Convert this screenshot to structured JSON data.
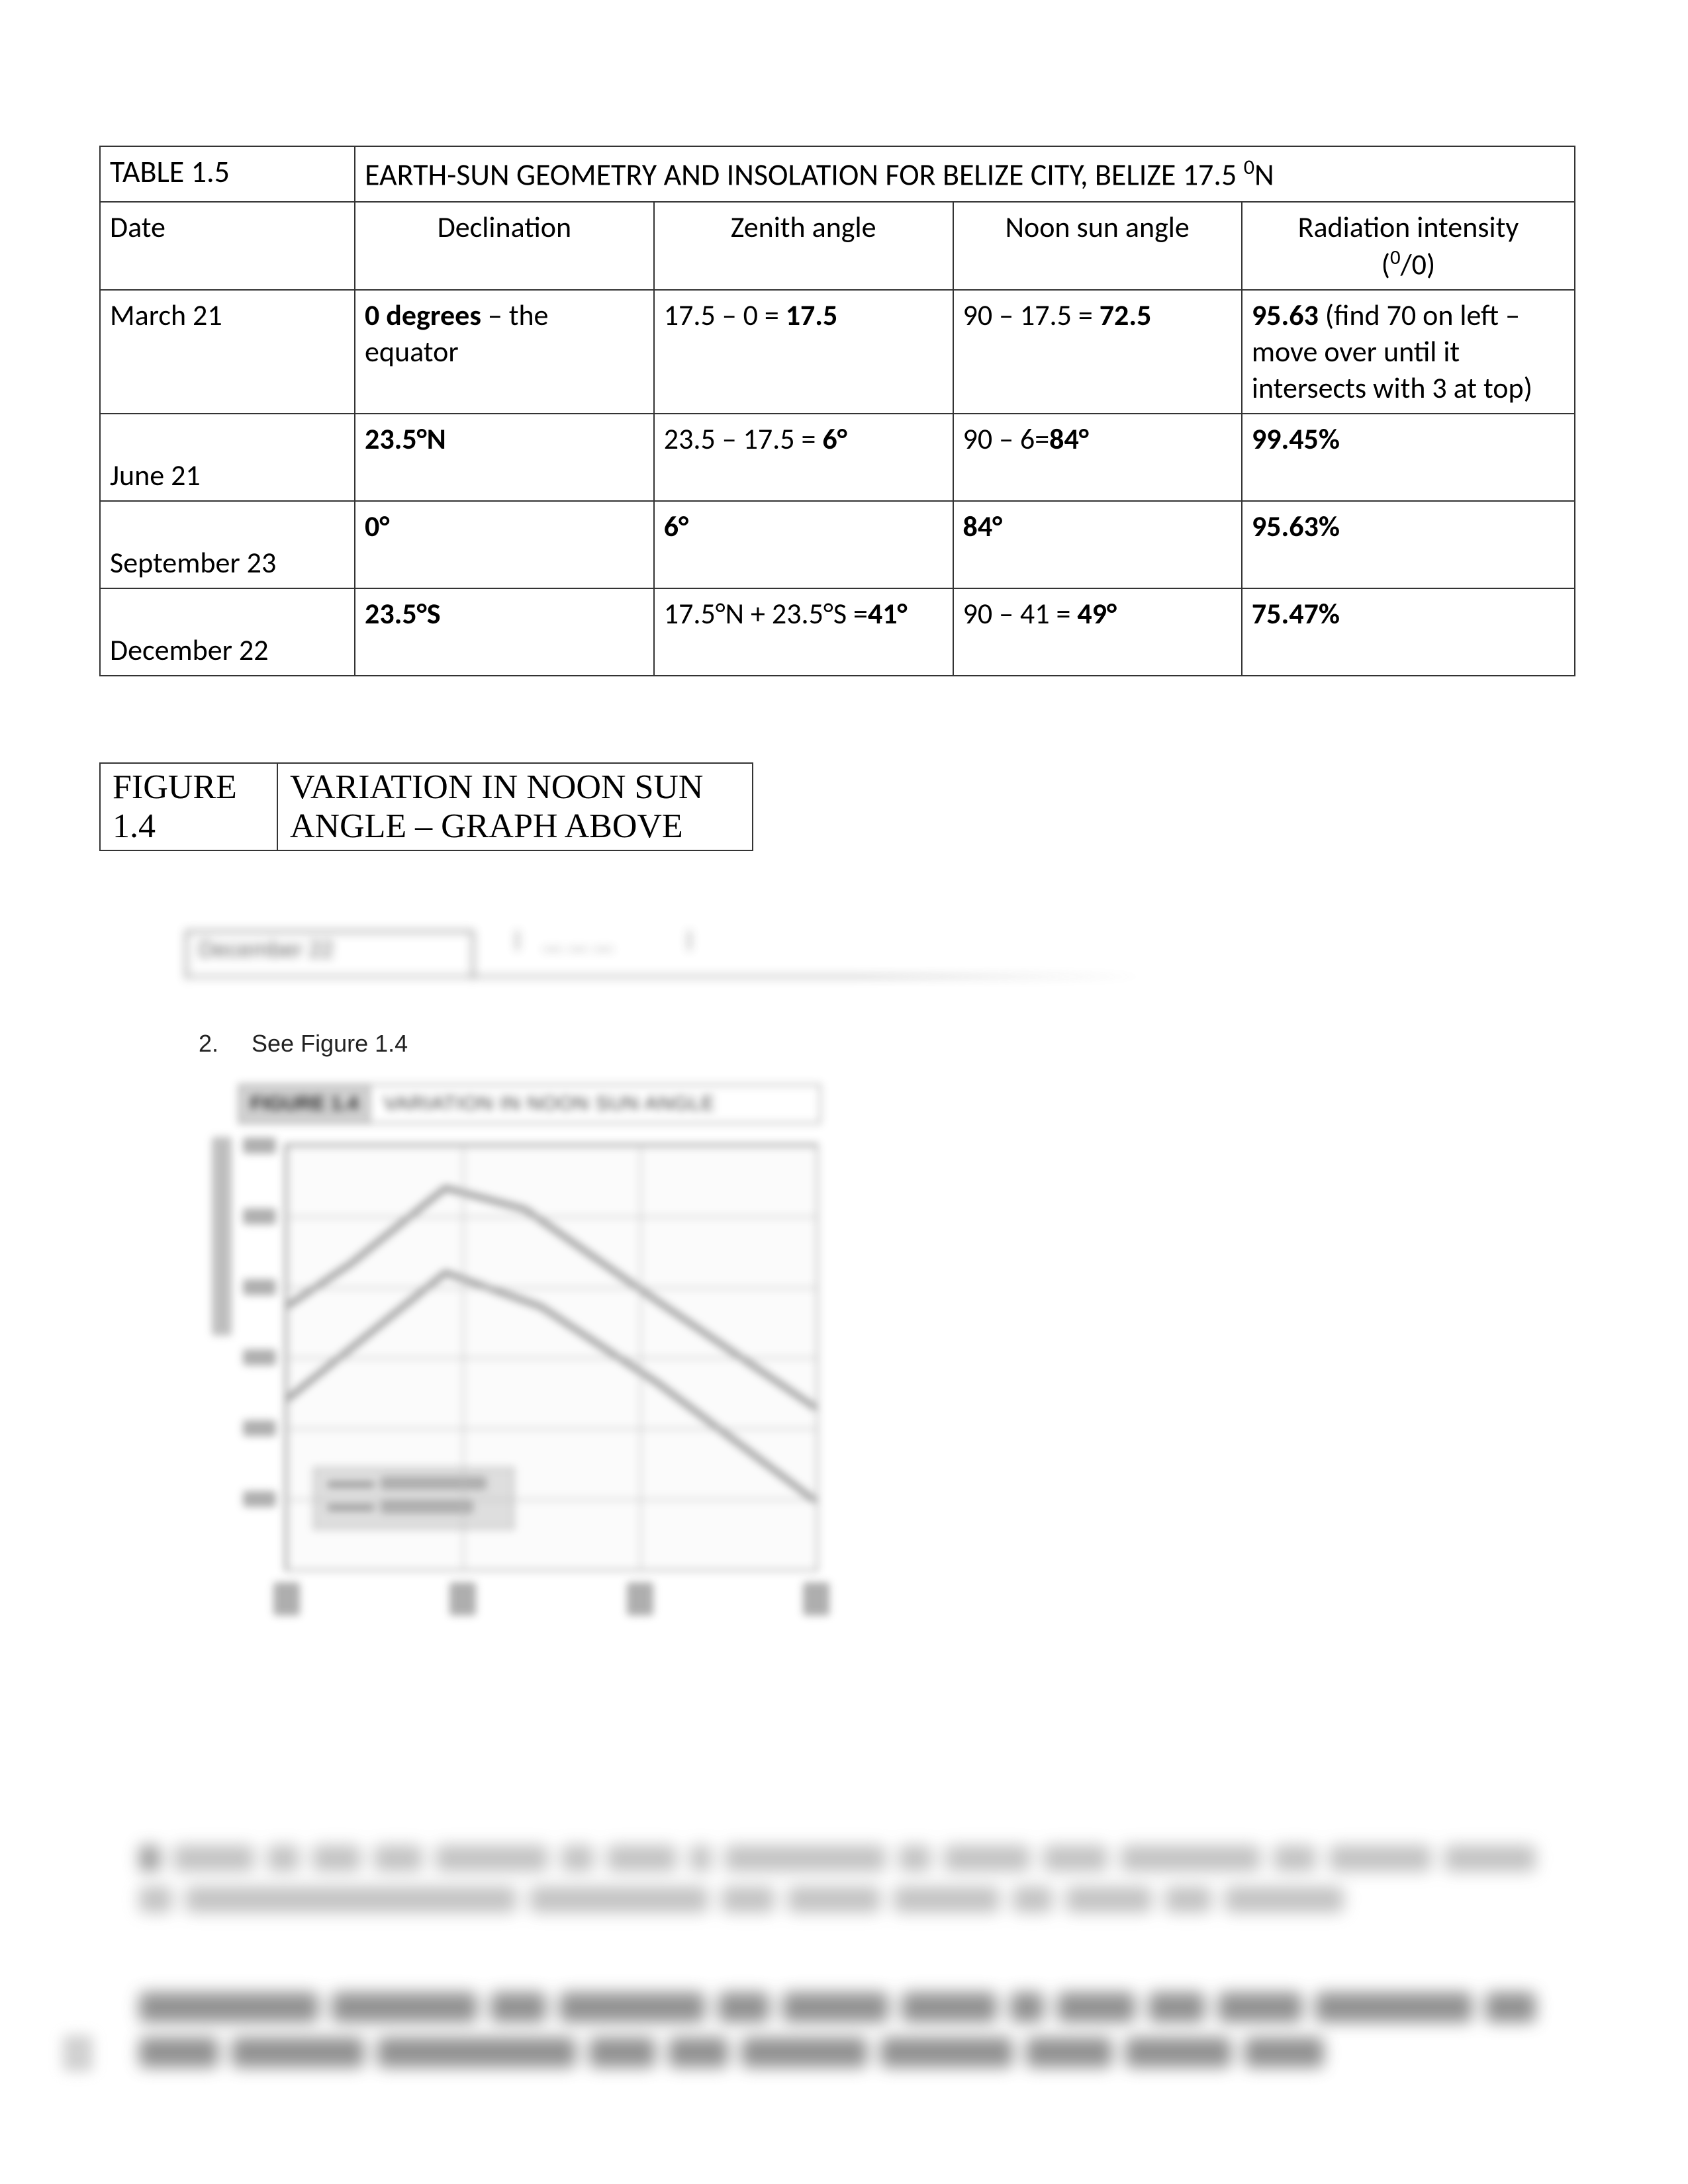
{
  "table15": {
    "label": "TABLE 1.5",
    "title_pre": "EARTH-SUN GEOMETRY AND INSOLATION FOR BELIZE CITY, BELIZE 17.5 ",
    "title_sup": "0",
    "title_post": "N",
    "headers": {
      "date": "Date",
      "declination": "Declination",
      "zenith": "Zenith angle",
      "noon": "Noon sun angle",
      "radiation_line1": "Radiation intensity",
      "radiation_line2_pre": "(",
      "radiation_line2_sup": "0",
      "radiation_line2_post": "/0)"
    },
    "rows": [
      {
        "date": "March 21",
        "decl_bold": "0 degrees",
        "decl_rest": " – the equator",
        "zen_pre": "17.5 – 0  = ",
        "zen_bold": "17.5",
        "noon_pre": "90 – 17.5 = ",
        "noon_bold": "72.5",
        "rad_bold": "95.63",
        "rad_rest": " (find 70 on left – move over until it intersects with 3 at top)"
      },
      {
        "date": "June 21",
        "decl_bold": "23.5°N",
        "decl_rest": "",
        "zen_pre": "23.5 – 17.5 =  ",
        "zen_bold": "6°",
        "noon_pre": "90 – 6=",
        "noon_bold": "84°",
        "rad_bold": "99.45%",
        "rad_rest": ""
      },
      {
        "date": "September 23",
        "decl_bold": "0°",
        "decl_rest": "",
        "zen_pre": "",
        "zen_bold": "6°",
        "noon_pre": "",
        "noon_bold": "84°",
        "rad_bold": "95.63%",
        "rad_rest": ""
      },
      {
        "date": "December 22",
        "decl_bold": "23.5°S",
        "decl_rest": "",
        "zen_pre": "17.5°N + 23.5°S =",
        "zen_bold": "41°",
        "noon_pre": "90 – 41 = ",
        "noon_bold": "49°",
        "rad_bold": "75.47%",
        "rad_rest": ""
      }
    ]
  },
  "figure14_header": {
    "label_line1": "FIGURE",
    "label_line2": "1.4",
    "title_line1": "VARIATION IN NOON SUN",
    "title_line2": "ANGLE – GRAPH ABOVE"
  },
  "see_figure": {
    "number": "2.",
    "text": "See Figure 1.4"
  },
  "chart": {
    "type": "line",
    "caption_label": "FIGURE 1.4",
    "caption_text": "VARIATION IN NOON SUN ANGLE",
    "background_color": "#fbfbfb",
    "border_color": "#888888",
    "grid_color": "#bbbbbb",
    "line_color": "#888888",
    "line_width": 8,
    "y_gridlines_pct": [
      0,
      16.7,
      33.3,
      50,
      66.7,
      83.3,
      100
    ],
    "x_gridlines_pct": [
      0,
      33.3,
      66.7,
      100
    ],
    "x_tick_positions_pct": [
      0,
      33.3,
      66.7,
      100
    ],
    "y_tick_positions_pct": [
      0,
      16.7,
      33.3,
      50,
      66.7,
      83.3
    ],
    "series": [
      {
        "name": "series-a",
        "points_pct": [
          [
            0,
            38
          ],
          [
            12,
            28
          ],
          [
            30,
            10
          ],
          [
            45,
            15
          ],
          [
            68,
            35
          ],
          [
            100,
            62
          ]
        ]
      },
      {
        "name": "series-b",
        "points_pct": [
          [
            0,
            60
          ],
          [
            12,
            48
          ],
          [
            30,
            30
          ],
          [
            48,
            38
          ],
          [
            70,
            56
          ],
          [
            100,
            84
          ]
        ]
      }
    ]
  },
  "styling": {
    "page_bg": "#ffffff",
    "text_color": "#000000",
    "table_border": "#333333",
    "blur_light": "#b9b9b9",
    "blur_dark": "#7f7f7f"
  }
}
